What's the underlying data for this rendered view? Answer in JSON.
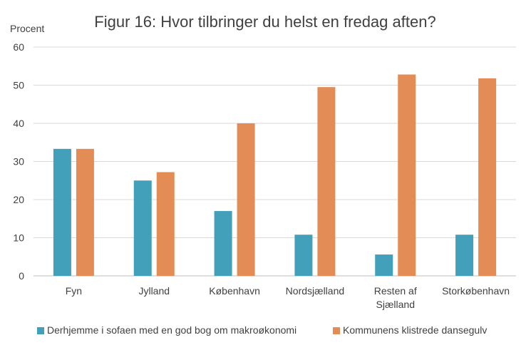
{
  "chart_data": {
    "type": "bar",
    "title": "Figur 16: Hvor tilbringer du helst en fredag aften?",
    "ylabel": "Procent",
    "xlabel": "",
    "ylim": [
      0,
      60
    ],
    "yticks": [
      0,
      10,
      20,
      30,
      40,
      50,
      60
    ],
    "grid": true,
    "legend_position": "bottom",
    "categories": [
      [
        "Fyn"
      ],
      [
        "Jylland"
      ],
      [
        "København"
      ],
      [
        "Nordsjælland"
      ],
      [
        "Resten af",
        "Sjælland"
      ],
      [
        "Storkøbenhavn"
      ]
    ],
    "series": [
      {
        "name": "Derhjemme i sofaen med en god bog om makroøkonomi",
        "color": "#43a0bb",
        "values": [
          33.3,
          25.0,
          17.0,
          10.8,
          5.6,
          10.8
        ]
      },
      {
        "name": "Kommunens klistrede dansegulv",
        "color": "#e38c55",
        "values": [
          33.3,
          27.2,
          40.0,
          49.5,
          52.8,
          51.8
        ]
      }
    ]
  }
}
